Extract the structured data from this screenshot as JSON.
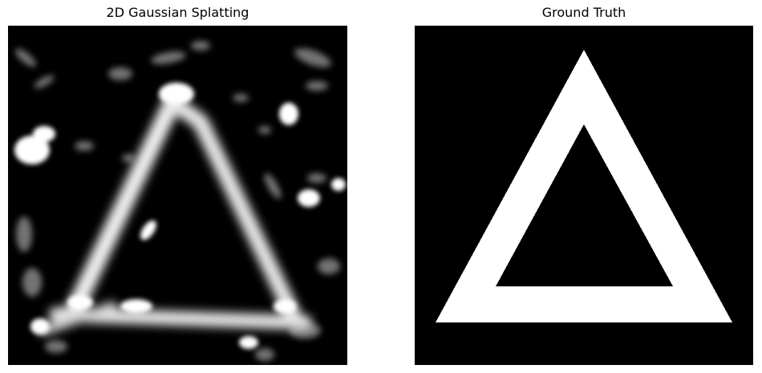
{
  "panels": [
    {
      "title": "2D Gaussian Splatting",
      "type": "reconstruction"
    },
    {
      "title": "Ground Truth",
      "type": "target"
    }
  ],
  "colors": {
    "background": "#000000",
    "shape": "#ffffff",
    "page": "#ffffff"
  }
}
